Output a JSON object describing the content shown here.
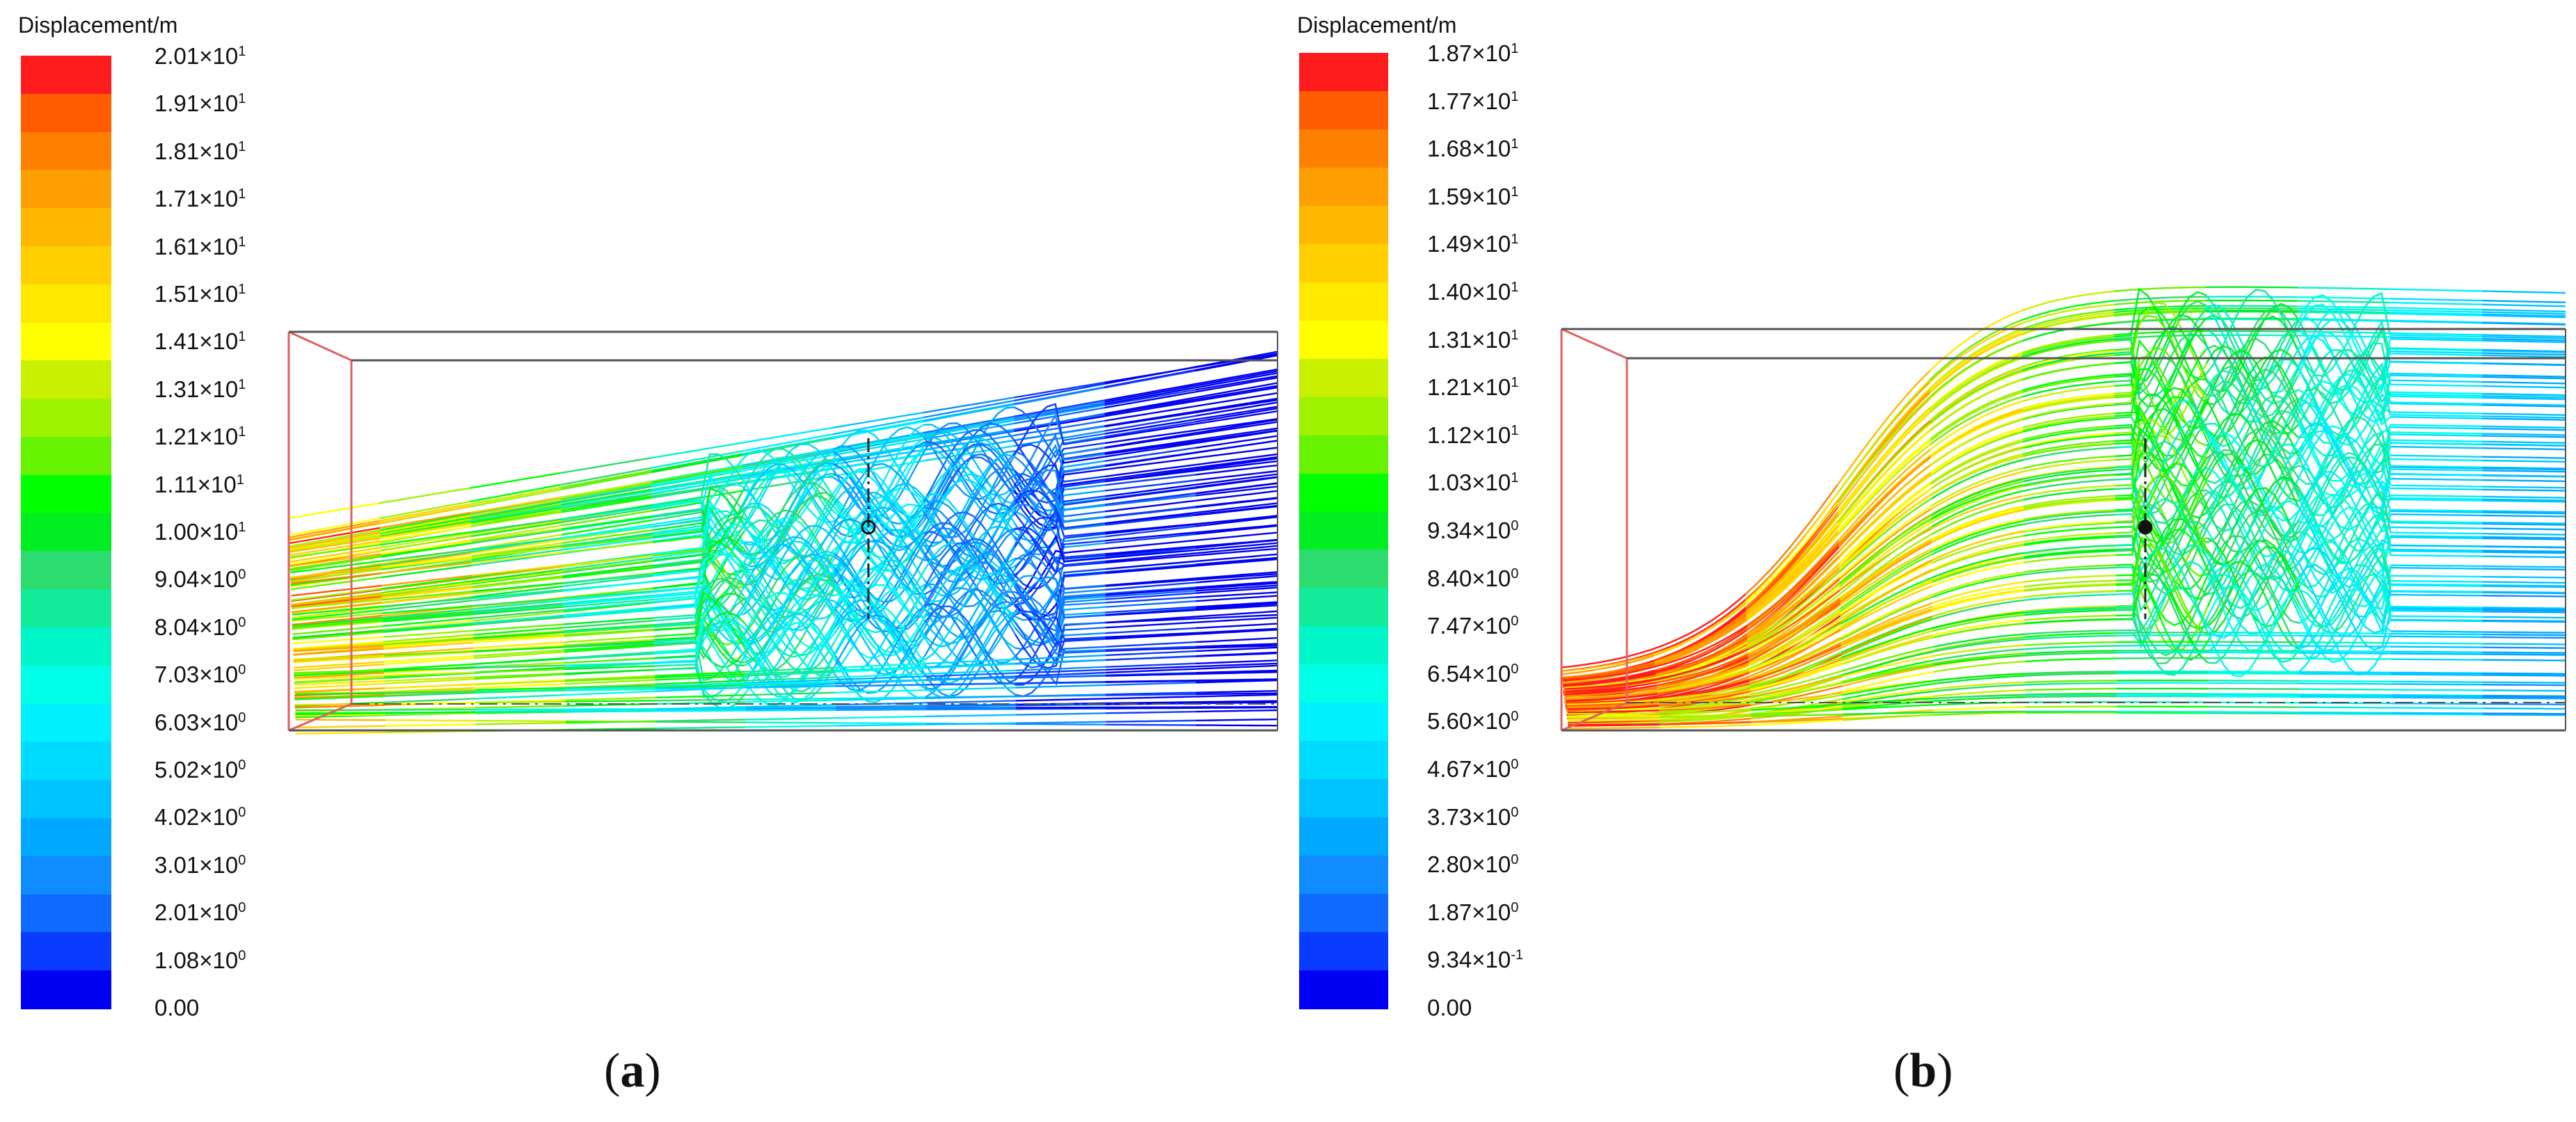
{
  "colors": {
    "scale": [
      "#0000f2",
      "#0a3cff",
      "#0f6bff",
      "#0f8cff",
      "#00a8ff",
      "#00c4ff",
      "#00dcff",
      "#00f0ff",
      "#00ffe6",
      "#00f5c8",
      "#12eb99",
      "#2ddc6e",
      "#00ee22",
      "#00ff00",
      "#66f200",
      "#9ef200",
      "#c8f000",
      "#ffff00",
      "#ffe800",
      "#ffcf00",
      "#ffb800",
      "#ff9e00",
      "#ff8000",
      "#ff5c00",
      "#ff1c1c"
    ],
    "box_red": "#e06060",
    "box_dark": "#555555"
  },
  "panels": [
    {
      "legend_title": "Displacement/m",
      "ticks": [
        {
          "m": "2.01",
          "e": "1"
        },
        {
          "m": "1.91",
          "e": "1"
        },
        {
          "m": "1.81",
          "e": "1"
        },
        {
          "m": "1.71",
          "e": "1"
        },
        {
          "m": "1.61",
          "e": "1"
        },
        {
          "m": "1.51",
          "e": "1"
        },
        {
          "m": "1.41",
          "e": "1"
        },
        {
          "m": "1.31",
          "e": "1"
        },
        {
          "m": "1.21",
          "e": "1"
        },
        {
          "m": "1.11",
          "e": "1"
        },
        {
          "m": "1.00",
          "e": "1"
        },
        {
          "m": "9.04",
          "e": "0"
        },
        {
          "m": "8.04",
          "e": "0"
        },
        {
          "m": "7.03",
          "e": "0"
        },
        {
          "m": "6.03",
          "e": "0"
        },
        {
          "m": "5.02",
          "e": "0"
        },
        {
          "m": "4.02",
          "e": "0"
        },
        {
          "m": "3.01",
          "e": "0"
        },
        {
          "m": "2.01",
          "e": "0"
        },
        {
          "m": "1.08",
          "e": "0"
        },
        {
          "m": "0.00",
          "e": ""
        }
      ],
      "caption_letter": "a",
      "caption_open": "(",
      "caption_close": ")"
    },
    {
      "legend_title": "Displacement/m",
      "ticks": [
        {
          "m": "1.87",
          "e": "1"
        },
        {
          "m": "1.77",
          "e": "1"
        },
        {
          "m": "1.68",
          "e": "1"
        },
        {
          "m": "1.59",
          "e": "1"
        },
        {
          "m": "1.49",
          "e": "1"
        },
        {
          "m": "1.40",
          "e": "1"
        },
        {
          "m": "1.31",
          "e": "1"
        },
        {
          "m": "1.21",
          "e": "1"
        },
        {
          "m": "1.12",
          "e": "1"
        },
        {
          "m": "1.03",
          "e": "1"
        },
        {
          "m": "9.34",
          "e": "0"
        },
        {
          "m": "8.40",
          "e": "0"
        },
        {
          "m": "7.47",
          "e": "0"
        },
        {
          "m": "6.54",
          "e": "0"
        },
        {
          "m": "5.60",
          "e": "0"
        },
        {
          "m": "4.67",
          "e": "0"
        },
        {
          "m": "3.73",
          "e": "0"
        },
        {
          "m": "2.80",
          "e": "0"
        },
        {
          "m": "1.87",
          "e": "0"
        },
        {
          "m": "9.34",
          "e": "-1"
        },
        {
          "m": "0.00",
          "e": ""
        }
      ],
      "caption_letter": "b",
      "caption_open": "(",
      "caption_close": ")"
    }
  ]
}
